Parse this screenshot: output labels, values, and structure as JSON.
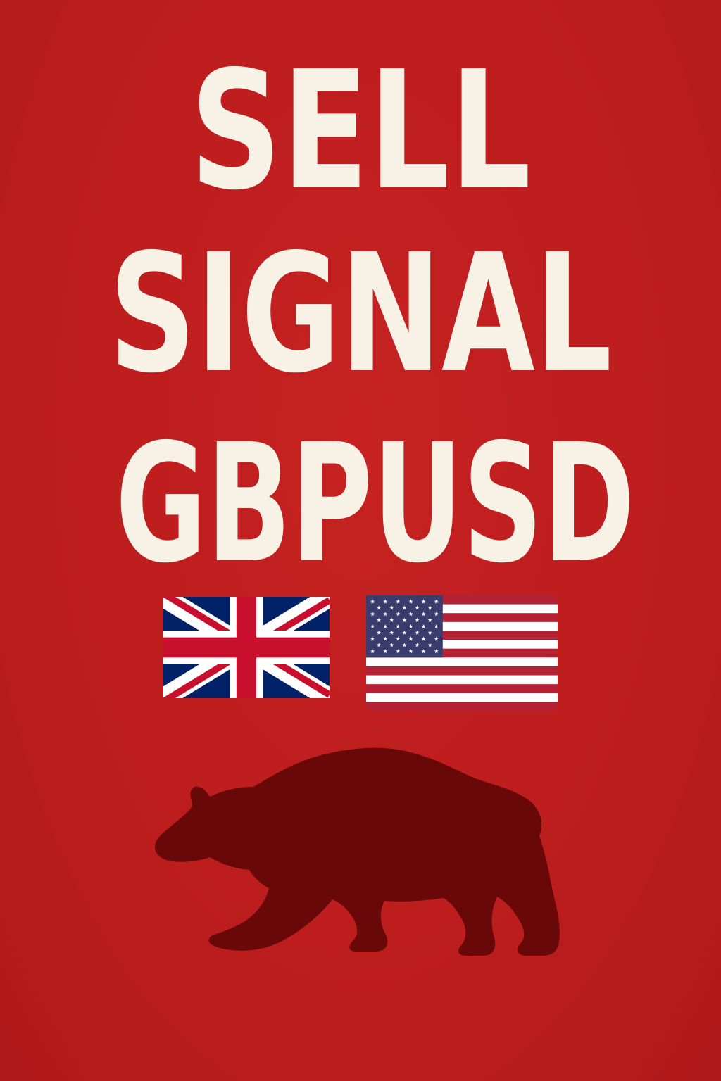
{
  "headline": {
    "line1": "SELL",
    "line2": "SIGNAL",
    "line3": "GBPUSD"
  },
  "flags": [
    {
      "icon": "uk-flag-icon",
      "colors": {
        "blue": "#012169",
        "red": "#c8102e",
        "white": "#ffffff"
      }
    },
    {
      "icon": "us-flag-icon",
      "colors": {
        "blue": "#3c3b6e",
        "red": "#b22234",
        "white": "#ffffff"
      }
    }
  ],
  "emblem": {
    "icon": "bear-silhouette-icon",
    "color": "#690808"
  },
  "colors": {
    "background": "#bf1e1e",
    "text": "#f7f1e6"
  }
}
